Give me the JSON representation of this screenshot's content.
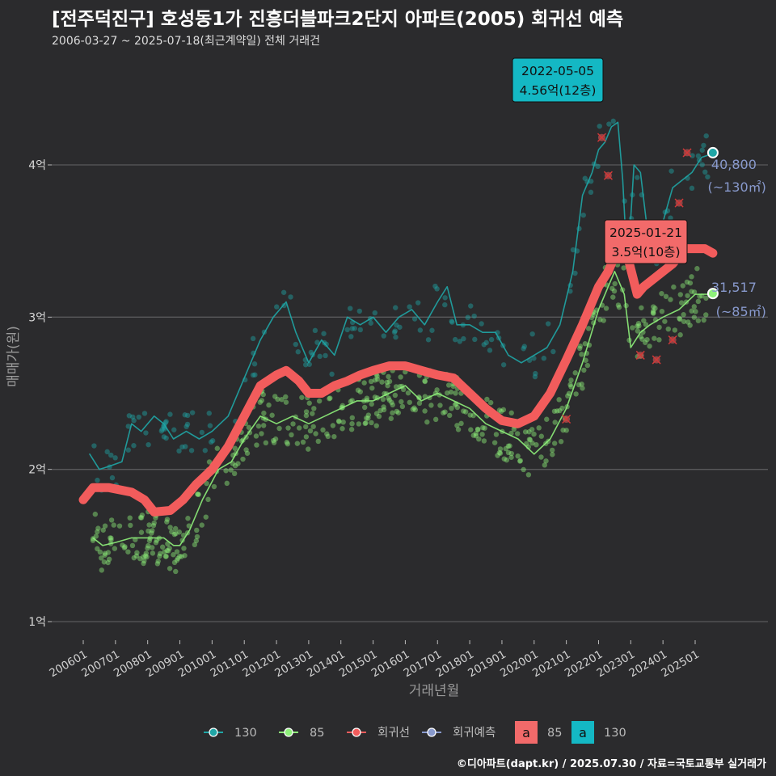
{
  "header": {
    "title": "[전주덕진구] 호성동1가 진흥더블파크2단지 아파트(2005) 회귀선 예측",
    "subtitle": "2006-03-27 ~ 2025-07-18(최근계약일) 전체 거래건"
  },
  "footer": {
    "credit": "©디아파트(dapt.kr) / 2025.07.30 / 자료=국토교통부 실거래가"
  },
  "colors": {
    "background": "#2b2b2d",
    "grid": "#5a5a5c",
    "s130": "#1fa6a6",
    "s85": "#8ef07a",
    "regression": "#f25c5c",
    "forecast": "#8899cc",
    "label130_bg": "#14b8c4",
    "label85_bg": "#f26a6a"
  },
  "chart_data": {
    "type": "line",
    "xlabel": "거래년월",
    "ylabel": "매매가(원)",
    "ylim": [
      0.85,
      4.95
    ],
    "yticks": [
      {
        "v": 1,
        "label": "1억"
      },
      {
        "v": 2,
        "label": "2억"
      },
      {
        "v": 3,
        "label": "3억"
      },
      {
        "v": 4,
        "label": "4억"
      }
    ],
    "xlim": [
      2006.0,
      2025.8
    ],
    "xticks": [
      {
        "v": 2006.0,
        "label": "200601"
      },
      {
        "v": 2007.0,
        "label": "200701"
      },
      {
        "v": 2008.0,
        "label": "200801"
      },
      {
        "v": 2009.0,
        "label": "200901"
      },
      {
        "v": 2010.0,
        "label": "201001"
      },
      {
        "v": 2011.0,
        "label": "201101"
      },
      {
        "v": 2012.0,
        "label": "201201"
      },
      {
        "v": 2013.0,
        "label": "201301"
      },
      {
        "v": 2014.0,
        "label": "201401"
      },
      {
        "v": 2015.0,
        "label": "201501"
      },
      {
        "v": 2016.0,
        "label": "201601"
      },
      {
        "v": 2017.0,
        "label": "201701"
      },
      {
        "v": 2018.0,
        "label": "201801"
      },
      {
        "v": 2019.0,
        "label": "201901"
      },
      {
        "v": 2020.0,
        "label": "202001"
      },
      {
        "v": 2021.0,
        "label": "202101"
      },
      {
        "v": 2022.0,
        "label": "202201"
      },
      {
        "v": 2023.0,
        "label": "202301"
      },
      {
        "v": 2024.0,
        "label": "202401"
      },
      {
        "v": 2025.0,
        "label": "202501"
      }
    ],
    "series": [
      {
        "name": "130",
        "key": "s130",
        "points": [
          [
            2006.2,
            2.1
          ],
          [
            2006.5,
            2.0
          ],
          [
            2006.8,
            2.02
          ],
          [
            2007.2,
            2.05
          ],
          [
            2007.5,
            2.3
          ],
          [
            2007.8,
            2.25
          ],
          [
            2008.2,
            2.35
          ],
          [
            2008.5,
            2.3
          ],
          [
            2008.8,
            2.2
          ],
          [
            2009.2,
            2.25
          ],
          [
            2009.6,
            2.2
          ],
          [
            2010.0,
            2.25
          ],
          [
            2010.5,
            2.35
          ],
          [
            2011.0,
            2.6
          ],
          [
            2011.5,
            2.85
          ],
          [
            2011.9,
            3.0
          ],
          [
            2012.3,
            3.1
          ],
          [
            2012.6,
            2.9
          ],
          [
            2013.0,
            2.7
          ],
          [
            2013.4,
            2.85
          ],
          [
            2013.8,
            2.75
          ],
          [
            2014.2,
            3.0
          ],
          [
            2014.6,
            2.95
          ],
          [
            2015.0,
            3.0
          ],
          [
            2015.4,
            2.9
          ],
          [
            2015.8,
            3.0
          ],
          [
            2016.2,
            3.05
          ],
          [
            2016.6,
            2.95
          ],
          [
            2017.0,
            3.1
          ],
          [
            2017.3,
            3.2
          ],
          [
            2017.6,
            2.95
          ],
          [
            2018.0,
            2.95
          ],
          [
            2018.4,
            2.9
          ],
          [
            2018.8,
            2.9
          ],
          [
            2019.2,
            2.75
          ],
          [
            2019.6,
            2.7
          ],
          [
            2020.0,
            2.75
          ],
          [
            2020.4,
            2.8
          ],
          [
            2020.8,
            2.95
          ],
          [
            2021.2,
            3.3
          ],
          [
            2021.5,
            3.8
          ],
          [
            2021.8,
            3.95
          ],
          [
            2022.0,
            4.1
          ],
          [
            2022.2,
            4.15
          ],
          [
            2022.4,
            4.25
          ],
          [
            2022.6,
            4.28
          ],
          [
            2022.75,
            3.9
          ],
          [
            2022.9,
            3.3
          ],
          [
            2023.1,
            4.0
          ],
          [
            2023.3,
            3.95
          ],
          [
            2023.5,
            3.6
          ],
          [
            2023.7,
            3.45
          ],
          [
            2023.9,
            3.55
          ],
          [
            2024.1,
            3.7
          ],
          [
            2024.3,
            3.85
          ],
          [
            2024.6,
            3.9
          ],
          [
            2024.9,
            3.95
          ],
          [
            2025.2,
            4.05
          ],
          [
            2025.5,
            4.07
          ]
        ]
      },
      {
        "name": "85",
        "key": "s85",
        "points": [
          [
            2006.3,
            1.55
          ],
          [
            2006.6,
            1.5
          ],
          [
            2007.0,
            1.52
          ],
          [
            2007.5,
            1.55
          ],
          [
            2008.0,
            1.55
          ],
          [
            2008.5,
            1.55
          ],
          [
            2008.8,
            1.5
          ],
          [
            2009.0,
            1.5
          ],
          [
            2009.3,
            1.6
          ],
          [
            2009.7,
            1.8
          ],
          [
            2010.2,
            2.0
          ],
          [
            2010.6,
            2.05
          ],
          [
            2011.0,
            2.2
          ],
          [
            2011.5,
            2.35
          ],
          [
            2012.0,
            2.3
          ],
          [
            2012.5,
            2.35
          ],
          [
            2013.0,
            2.3
          ],
          [
            2013.5,
            2.35
          ],
          [
            2014.0,
            2.4
          ],
          [
            2014.5,
            2.45
          ],
          [
            2015.0,
            2.45
          ],
          [
            2015.5,
            2.5
          ],
          [
            2016.0,
            2.55
          ],
          [
            2016.5,
            2.45
          ],
          [
            2017.0,
            2.5
          ],
          [
            2017.5,
            2.45
          ],
          [
            2018.0,
            2.4
          ],
          [
            2018.5,
            2.3
          ],
          [
            2019.0,
            2.25
          ],
          [
            2019.5,
            2.2
          ],
          [
            2020.0,
            2.1
          ],
          [
            2020.5,
            2.2
          ],
          [
            2021.0,
            2.4
          ],
          [
            2021.5,
            2.7
          ],
          [
            2022.0,
            3.05
          ],
          [
            2022.3,
            3.2
          ],
          [
            2022.5,
            3.3
          ],
          [
            2022.8,
            3.15
          ],
          [
            2023.0,
            2.8
          ],
          [
            2023.3,
            2.9
          ],
          [
            2023.6,
            2.95
          ],
          [
            2024.0,
            3.0
          ],
          [
            2024.5,
            3.05
          ],
          [
            2025.0,
            3.15
          ],
          [
            2025.5,
            3.15
          ]
        ]
      },
      {
        "name": "회귀선",
        "key": "regression",
        "points": [
          [
            2006.0,
            1.8
          ],
          [
            2006.3,
            1.88
          ],
          [
            2006.8,
            1.88
          ],
          [
            2007.5,
            1.85
          ],
          [
            2007.9,
            1.8
          ],
          [
            2008.2,
            1.72
          ],
          [
            2008.7,
            1.73
          ],
          [
            2009.1,
            1.8
          ],
          [
            2009.5,
            1.9
          ],
          [
            2010.0,
            2.0
          ],
          [
            2010.5,
            2.15
          ],
          [
            2011.0,
            2.35
          ],
          [
            2011.5,
            2.55
          ],
          [
            2012.0,
            2.62
          ],
          [
            2012.3,
            2.65
          ],
          [
            2012.7,
            2.58
          ],
          [
            2013.0,
            2.5
          ],
          [
            2013.4,
            2.5
          ],
          [
            2013.8,
            2.55
          ],
          [
            2014.2,
            2.58
          ],
          [
            2014.6,
            2.62
          ],
          [
            2015.0,
            2.65
          ],
          [
            2015.5,
            2.68
          ],
          [
            2016.0,
            2.68
          ],
          [
            2016.5,
            2.65
          ],
          [
            2017.0,
            2.62
          ],
          [
            2017.5,
            2.6
          ],
          [
            2018.0,
            2.5
          ],
          [
            2018.5,
            2.4
          ],
          [
            2019.0,
            2.32
          ],
          [
            2019.5,
            2.3
          ],
          [
            2020.0,
            2.35
          ],
          [
            2020.5,
            2.5
          ],
          [
            2021.0,
            2.72
          ],
          [
            2021.5,
            2.95
          ],
          [
            2022.0,
            3.2
          ],
          [
            2022.3,
            3.3
          ],
          [
            2022.6,
            3.45
          ],
          [
            2022.9,
            3.4
          ],
          [
            2023.2,
            3.15
          ],
          [
            2023.4,
            3.2
          ],
          [
            2023.7,
            3.25
          ],
          [
            2024.0,
            3.3
          ],
          [
            2024.3,
            3.35
          ],
          [
            2024.7,
            3.45
          ],
          [
            2025.0,
            3.45
          ],
          [
            2025.3,
            3.45
          ],
          [
            2025.55,
            3.42
          ]
        ]
      }
    ],
    "forecast": [
      {
        "name": "130",
        "x": 2025.55,
        "y": 4.08,
        "value": "40,800",
        "area": "(~130㎡)"
      },
      {
        "name": "85",
        "x": 2025.55,
        "y": 3.155,
        "value": "31,517",
        "area": "(~85㎡)"
      }
    ],
    "annotations": [
      {
        "series": "130",
        "date": "2022-05-05",
        "price": "4.56억(12층)"
      },
      {
        "series": "85",
        "date": "2025-01-21",
        "price": "3.5억(10층)"
      }
    ],
    "outliers": [
      [
        2022.1,
        4.18
      ],
      [
        2022.3,
        3.93
      ],
      [
        2024.5,
        3.75
      ],
      [
        2024.75,
        4.08
      ],
      [
        2021.0,
        2.33
      ],
      [
        2023.3,
        2.75
      ],
      [
        2023.8,
        2.72
      ],
      [
        2024.3,
        2.85
      ]
    ],
    "legend": {
      "placement": "bottom",
      "items": [
        {
          "label": "130",
          "key": "s130"
        },
        {
          "label": "85",
          "key": "s85"
        },
        {
          "label": "회귀선",
          "key": "regression"
        },
        {
          "label": "회귀예측",
          "key": "forecast"
        }
      ],
      "fill_items": [
        {
          "glyph": "a",
          "label": "85",
          "key": "label85_bg"
        },
        {
          "glyph": "a",
          "label": "130",
          "key": "label130_bg"
        }
      ]
    }
  }
}
